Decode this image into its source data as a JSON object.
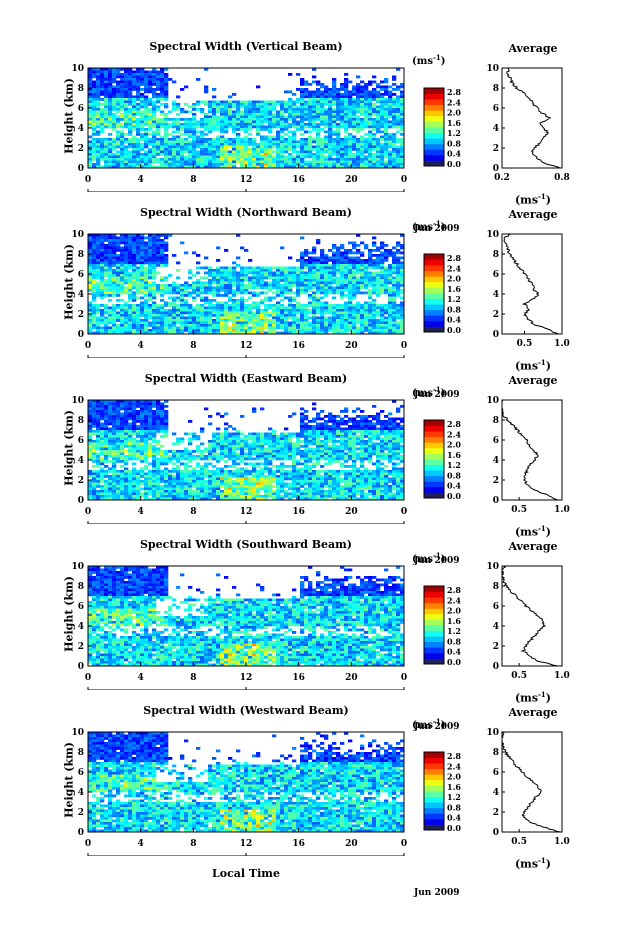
{
  "figure": {
    "xlabel": "Local Time",
    "month_label": "Jun 2009"
  },
  "colorbar": {
    "unit": "(ms",
    "unit_exp": "-1",
    "unit_close": ")",
    "ticks": [
      "2.8",
      "2.4",
      "2.0",
      "1.6",
      "1.2",
      "0.8",
      "0.4",
      "0.0"
    ]
  },
  "avg_panel": {
    "title": "Average",
    "xlabel": "(ms",
    "xlabel_exp": "-1",
    "xlabel_close": ")"
  },
  "chart_data": [
    {
      "type": "heatmap",
      "title": "Spectral Width (Vertical Beam)",
      "ylabel": "Height (km)",
      "xlim": [
        0,
        24
      ],
      "ylim": [
        0,
        10
      ],
      "x_ticks": [
        "0",
        "4",
        "8",
        "12",
        "16",
        "20",
        "0"
      ],
      "secondary_x_tick": "12",
      "y_ticks": [
        "0",
        "2",
        "4",
        "6",
        "8",
        "10"
      ],
      "colorbar_range": [
        0,
        2.8
      ],
      "profile": {
        "title": "Average",
        "xlim": [
          0.2,
          0.8
        ],
        "x_ticks": [
          "0.2",
          "0.8"
        ],
        "heights": [
          0,
          0.5,
          1,
          1.5,
          2,
          2.5,
          3,
          3.5,
          4,
          4.5,
          5,
          5.5,
          6,
          6.5,
          7,
          7.5,
          8,
          8.5,
          9,
          9.5,
          10
        ],
        "values": [
          0.78,
          0.62,
          0.55,
          0.5,
          0.52,
          0.58,
          0.6,
          0.66,
          0.62,
          0.58,
          0.68,
          0.6,
          0.55,
          0.5,
          0.48,
          0.42,
          0.35,
          0.3,
          0.28,
          0.25,
          0.27
        ]
      }
    },
    {
      "type": "heatmap",
      "title": "Spectral Width (Northward Beam)",
      "ylabel": "Height (km)",
      "xlim": [
        0,
        24
      ],
      "ylim": [
        0,
        10
      ],
      "x_ticks": [
        "0",
        "4",
        "8",
        "12",
        "16",
        "20",
        "0"
      ],
      "secondary_x_tick": "12",
      "y_ticks": [
        "0",
        "2",
        "4",
        "6",
        "8",
        "10"
      ],
      "colorbar_range": [
        0,
        2.8
      ],
      "profile": {
        "title": "Average",
        "xlim": [
          0.2,
          1.0
        ],
        "x_ticks": [
          "0.5",
          "1.0"
        ],
        "heights": [
          0,
          0.5,
          1,
          1.5,
          2,
          2.5,
          3,
          3.5,
          4,
          4.5,
          5,
          5.5,
          6,
          6.5,
          7,
          7.5,
          8,
          8.5,
          9,
          9.5,
          10
        ],
        "values": [
          0.95,
          0.8,
          0.62,
          0.55,
          0.5,
          0.56,
          0.5,
          0.62,
          0.68,
          0.62,
          0.6,
          0.55,
          0.5,
          0.45,
          0.4,
          0.35,
          0.3,
          0.28,
          0.25,
          0.22,
          0.3
        ]
      }
    },
    {
      "type": "heatmap",
      "title": "Spectral Width (Eastward Beam)",
      "ylabel": "Height (km)",
      "xlim": [
        0,
        24
      ],
      "ylim": [
        0,
        10
      ],
      "x_ticks": [
        "0",
        "4",
        "8",
        "12",
        "16",
        "20",
        "0"
      ],
      "secondary_x_tick": "12",
      "y_ticks": [
        "0",
        "2",
        "4",
        "6",
        "8",
        "10"
      ],
      "colorbar_range": [
        0,
        2.8
      ],
      "profile": {
        "title": "Average",
        "xlim": [
          0.3,
          1.0
        ],
        "x_ticks": [
          "0.5",
          "1.0"
        ],
        "heights": [
          0,
          0.5,
          1,
          1.5,
          2,
          2.5,
          3,
          3.5,
          4,
          4.5,
          5,
          5.5,
          6,
          6.5,
          7,
          7.5,
          8,
          8.5,
          9,
          9.5,
          10
        ],
        "values": [
          0.95,
          0.82,
          0.68,
          0.6,
          0.56,
          0.56,
          0.6,
          0.62,
          0.68,
          0.72,
          0.66,
          0.62,
          0.58,
          0.52,
          0.48,
          0.42,
          0.36,
          0.32,
          0.3,
          0.28,
          0.3
        ]
      }
    },
    {
      "type": "heatmap",
      "title": "Spectral Width (Southward Beam)",
      "ylabel": "Height (km)",
      "xlim": [
        0,
        24
      ],
      "ylim": [
        0,
        10
      ],
      "x_ticks": [
        "0",
        "4",
        "8",
        "12",
        "16",
        "20",
        "0"
      ],
      "secondary_x_tick": "12",
      "y_ticks": [
        "0",
        "2",
        "4",
        "6",
        "8",
        "10"
      ],
      "colorbar_range": [
        0,
        2.8
      ],
      "profile": {
        "title": "Average",
        "xlim": [
          0.3,
          1.0
        ],
        "x_ticks": [
          "0.5",
          "1.0"
        ],
        "heights": [
          0,
          0.5,
          1,
          1.5,
          2,
          2.5,
          3,
          3.5,
          4,
          4.5,
          5,
          5.5,
          6,
          6.5,
          7,
          7.5,
          8,
          8.5,
          9,
          9.5,
          10
        ],
        "values": [
          0.95,
          0.72,
          0.62,
          0.55,
          0.58,
          0.62,
          0.68,
          0.72,
          0.8,
          0.78,
          0.72,
          0.65,
          0.58,
          0.52,
          0.46,
          0.4,
          0.35,
          0.32,
          0.3,
          0.3,
          0.33
        ]
      }
    },
    {
      "type": "heatmap",
      "title": "Spectral Width (Westward Beam)",
      "ylabel": "Height (km)",
      "xlim": [
        0,
        24
      ],
      "ylim": [
        0,
        10
      ],
      "x_ticks": [
        "0",
        "4",
        "8",
        "12",
        "16",
        "20",
        "0"
      ],
      "secondary_x_tick": "12",
      "y_ticks": [
        "0",
        "2",
        "4",
        "6",
        "8",
        "10"
      ],
      "colorbar_range": [
        0,
        2.8
      ],
      "profile": {
        "title": "Average",
        "xlim": [
          0.3,
          1.0
        ],
        "x_ticks": [
          "0.5",
          "1.0"
        ],
        "heights": [
          0,
          0.5,
          1,
          1.5,
          2,
          2.5,
          3,
          3.5,
          4,
          4.5,
          5,
          5.5,
          6,
          6.5,
          7,
          7.5,
          8,
          8.5,
          9,
          9.5,
          10
        ],
        "values": [
          0.98,
          0.78,
          0.62,
          0.55,
          0.56,
          0.6,
          0.65,
          0.7,
          0.76,
          0.72,
          0.66,
          0.6,
          0.54,
          0.48,
          0.43,
          0.38,
          0.34,
          0.32,
          0.3,
          0.3,
          0.32
        ]
      }
    }
  ]
}
